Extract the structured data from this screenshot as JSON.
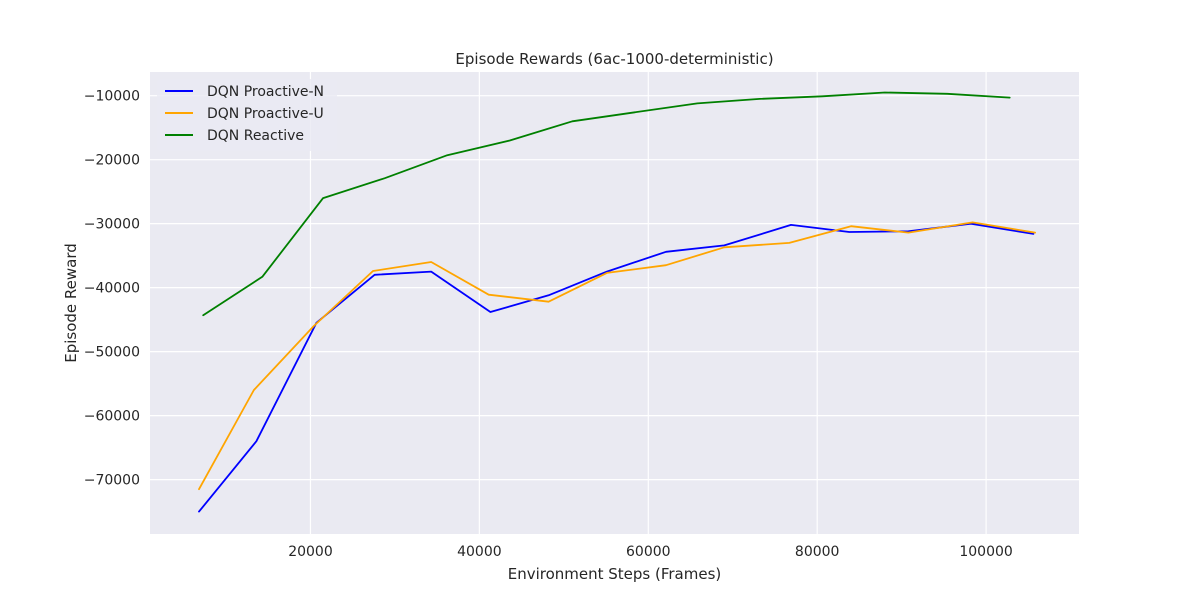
{
  "chart_data": {
    "type": "line",
    "title": "Episode Rewards (6ac-1000-deterministic)",
    "xlabel": "Environment Steps (Frames)",
    "ylabel": "Episode Reward",
    "xlim": [
      1000,
      111000
    ],
    "ylim": [
      -78500,
      -6300
    ],
    "xticks": [
      20000,
      40000,
      60000,
      80000,
      100000
    ],
    "xtick_labels": [
      "20000",
      "40000",
      "60000",
      "80000",
      "100000"
    ],
    "yticks": [
      -70000,
      -60000,
      -50000,
      -40000,
      -30000,
      -20000,
      -10000
    ],
    "ytick_labels": [
      "−70000",
      "−60000",
      "−50000",
      "−40000",
      "−30000",
      "−20000",
      "−10000"
    ],
    "grid": true,
    "legend_position": "top-left",
    "series": [
      {
        "name": "DQN Proactive-N",
        "color": "#0000ff",
        "x": [
          6800,
          13600,
          20700,
          27600,
          34300,
          41300,
          48200,
          55100,
          62100,
          69000,
          76900,
          83800,
          90800,
          98200,
          105600
        ],
        "y": [
          -75000,
          -64000,
          -45500,
          -38000,
          -37500,
          -43800,
          -41200,
          -37500,
          -34400,
          -33400,
          -30200,
          -31300,
          -31200,
          -30000,
          -31600
        ]
      },
      {
        "name": "DQN Proactive-U",
        "color": "#ffa500",
        "x": [
          6800,
          13300,
          20400,
          27400,
          34300,
          41100,
          48200,
          55100,
          62100,
          69000,
          76700,
          84000,
          90800,
          98400,
          105800
        ],
        "y": [
          -71500,
          -56000,
          -46000,
          -37400,
          -36000,
          -41100,
          -42200,
          -37700,
          -36500,
          -33700,
          -33000,
          -30400,
          -31400,
          -29800,
          -31400
        ]
      },
      {
        "name": "DQN Reactive",
        "color": "#008000",
        "x": [
          7300,
          14300,
          21500,
          28800,
          36200,
          43600,
          51000,
          58400,
          65800,
          73200,
          80600,
          88000,
          95400,
          102800
        ],
        "y": [
          -44300,
          -38300,
          -26000,
          -22900,
          -19300,
          -17000,
          -14000,
          -12600,
          -11200,
          -10500,
          -10100,
          -9500,
          -9700,
          -10300
        ]
      }
    ]
  }
}
